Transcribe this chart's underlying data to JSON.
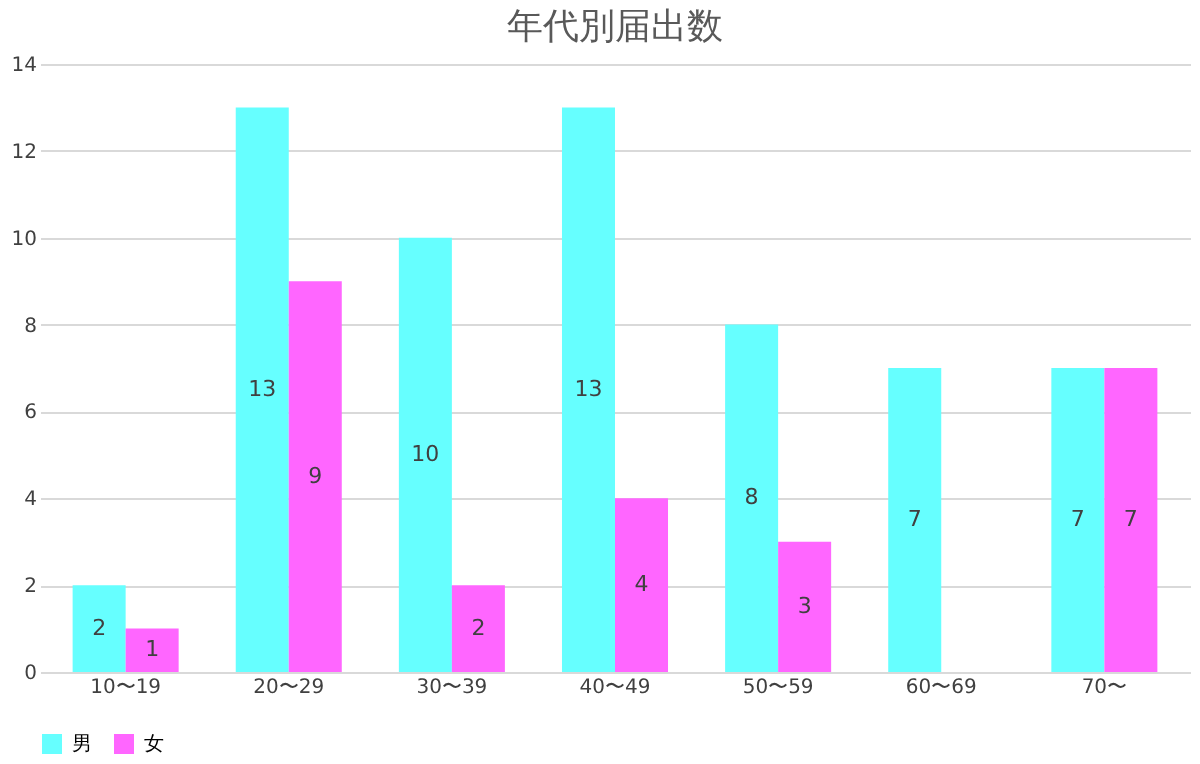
{
  "chart_data": {
    "type": "bar",
    "title": "年代別届出数",
    "categories": [
      "10〜19",
      "20〜29",
      "30〜39",
      "40〜49",
      "50〜59",
      "60〜69",
      "70〜"
    ],
    "series": [
      {
        "name": "男",
        "color": "#66ffff",
        "values": [
          2,
          13,
          10,
          13,
          8,
          7,
          7
        ]
      },
      {
        "name": "女",
        "color": "#ff66ff",
        "values": [
          1,
          9,
          2,
          4,
          3,
          null,
          7
        ]
      }
    ],
    "ylim": [
      0,
      14
    ],
    "yticks": [
      0,
      2,
      4,
      6,
      8,
      10,
      12,
      14
    ],
    "grid": "y",
    "legend": "bottom",
    "data_labels": true
  }
}
